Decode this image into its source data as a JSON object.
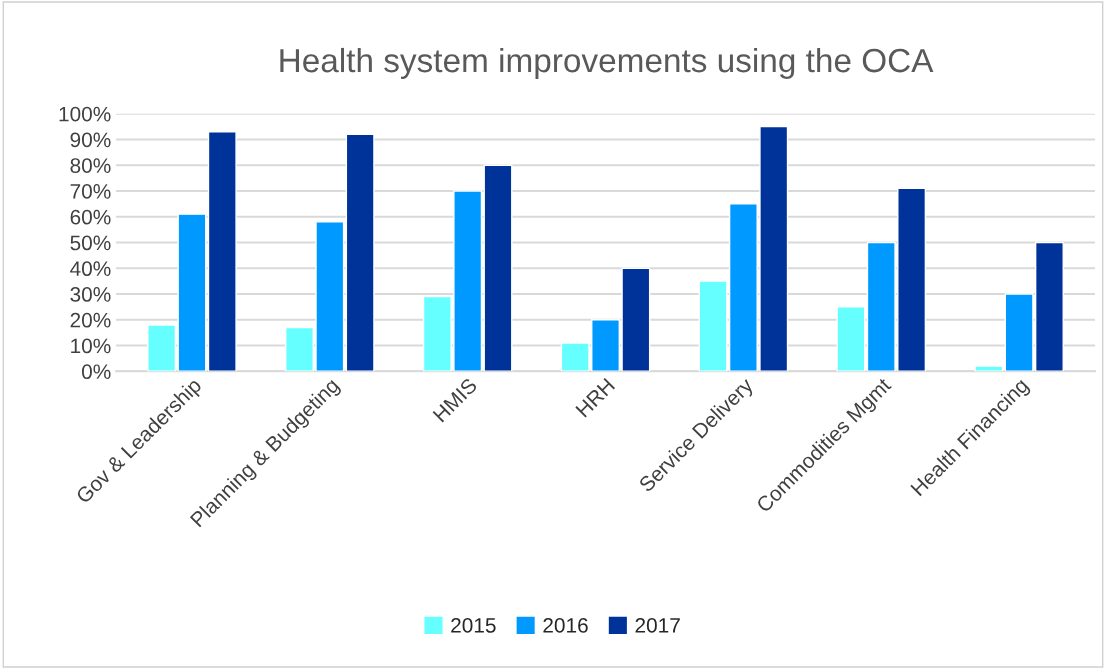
{
  "chart_data": {
    "type": "bar",
    "title": "Health system improvements using the OCA",
    "categories": [
      "Gov & Leadership",
      "Planning & Budgeting",
      "HMIS",
      "HRH",
      "Service Delivery",
      "Commodities Mgmt",
      "Health Financing"
    ],
    "series": [
      {
        "name": "2015",
        "color": "#66ffff",
        "values": [
          18,
          17,
          29,
          11,
          35,
          25,
          2
        ]
      },
      {
        "name": "2016",
        "color": "#0099ff",
        "values": [
          61,
          58,
          70,
          20,
          65,
          50,
          30
        ]
      },
      {
        "name": "2017",
        "color": "#003399",
        "values": [
          93,
          92,
          80,
          40,
          95,
          71,
          50
        ]
      }
    ],
    "ylim": [
      0,
      100
    ],
    "yticks": [
      {
        "value": 0,
        "label": "0%"
      },
      {
        "value": 10,
        "label": "10%"
      },
      {
        "value": 20,
        "label": "20%"
      },
      {
        "value": 30,
        "label": "30%"
      },
      {
        "value": 40,
        "label": "40%"
      },
      {
        "value": 50,
        "label": "50%"
      },
      {
        "value": 60,
        "label": "60%"
      },
      {
        "value": 70,
        "label": "70%"
      },
      {
        "value": 80,
        "label": "80%"
      },
      {
        "value": 90,
        "label": "90%"
      },
      {
        "value": 100,
        "label": "100%"
      }
    ],
    "grid": "y",
    "legend": "bottom"
  }
}
